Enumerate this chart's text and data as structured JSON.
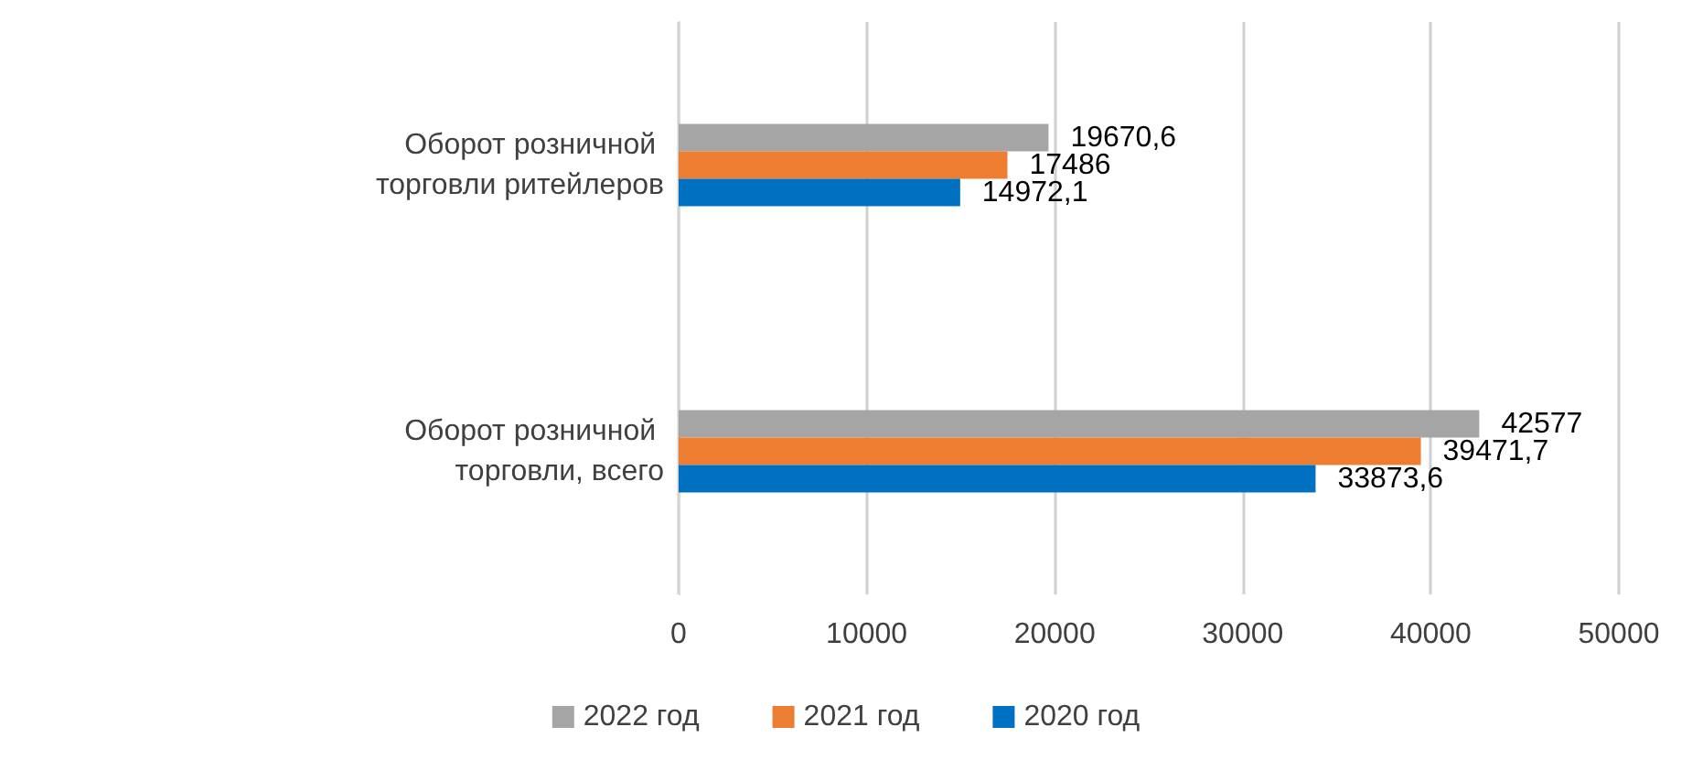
{
  "chart_data": {
    "type": "bar",
    "orientation": "horizontal",
    "categories": [
      "Оборот розничной торговли ритейлеров",
      "Оборот розничной торговли, всего"
    ],
    "series": [
      {
        "name": "2022 год",
        "color": "#a5a5a5",
        "values": [
          19670.6,
          42577
        ],
        "value_labels": [
          "19670,6",
          "42577"
        ]
      },
      {
        "name": "2021 год",
        "color": "#ed7d31",
        "values": [
          17486,
          39471.7
        ],
        "value_labels": [
          "17486",
          "39471,7"
        ]
      },
      {
        "name": "2020 год",
        "color": "#0070c0",
        "values": [
          14972.1,
          33873.6
        ],
        "value_labels": [
          "14972,1",
          "33873,6"
        ]
      }
    ],
    "xlim": [
      0,
      50000
    ],
    "xticks": [
      0,
      10000,
      20000,
      30000,
      40000,
      50000
    ],
    "grid": "x",
    "legend": "bottom"
  }
}
